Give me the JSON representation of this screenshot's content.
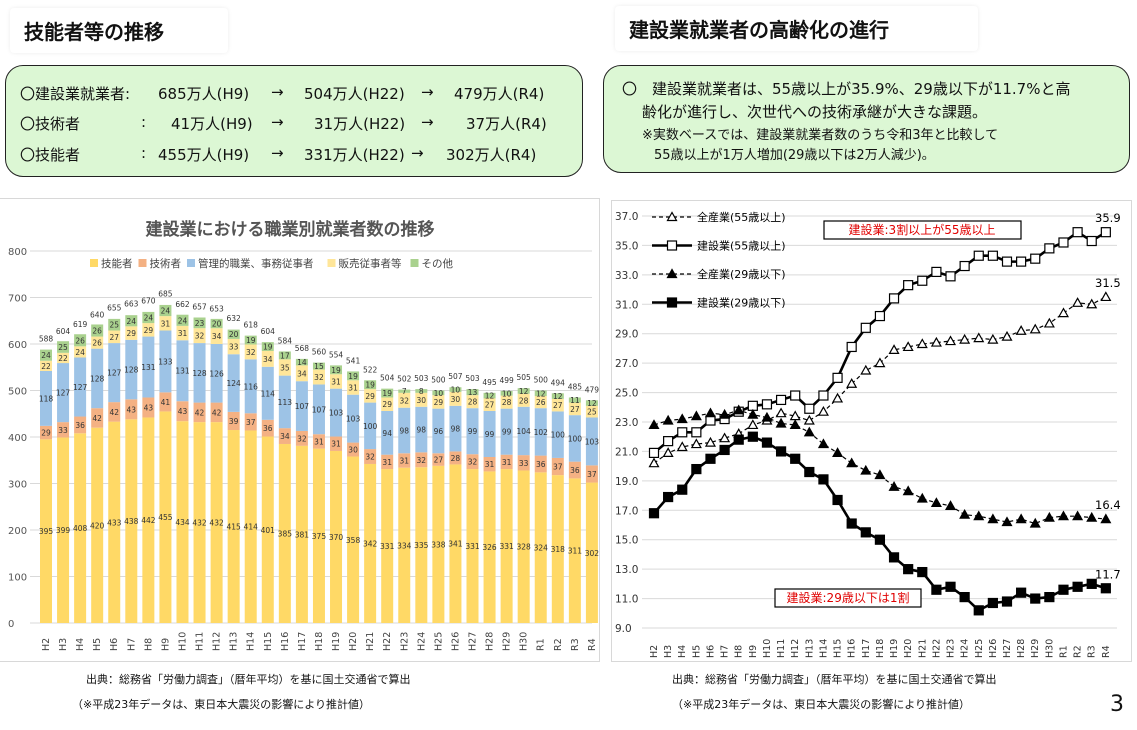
{
  "left": {
    "title": "技能者等の推移",
    "summary": [
      {
        "label": "〇建設業就業者",
        "sep": ":",
        "v1": "685万人(H9)",
        "v2": "504万人(H22)",
        "v3": "479万人(R4)"
      },
      {
        "label": "〇技術者",
        "sep": ":",
        "v1": "41万人(H9)",
        "v2": "31万人(H22)",
        "v3": "37万人(R4)"
      },
      {
        "label": "〇技能者",
        "sep": ":",
        "v1": "455万人(H9)",
        "v2": "331万人(H22)",
        "v3": "302万人(R4)"
      }
    ],
    "arrow": "→",
    "source": "出典：総務省「労働力調査」（暦年平均）を基に国土交通省で算出",
    "footnote": "（※平成23年データは、東日本大震災の影響により推計値）"
  },
  "right": {
    "title": "建設業就業者の高齢化の進行",
    "bullet": "〇",
    "line1": "建設業就業者は、55歳以上が35.9%、29歳以下が11.7%と高",
    "line2": "齢化が進行し、次世代への技術承継が大きな課題。",
    "line3": "※実数ベースでは、建設業就業者数のうち令和3年と比較して",
    "line4": "55歳以上が1万人増加(29歳以下は2万人減少)。",
    "source": "出典：総務省「労働力調査」（暦年平均）を基に国土交通省で算出",
    "footnote": "（※平成23年データは、東日本大震災の影響により推計値）"
  },
  "page_number": "3",
  "chart_data": [
    {
      "type": "bar",
      "stacked": true,
      "title": "建設業における職業別就業者数の推移",
      "legend_position": "top",
      "ylim": [
        0,
        800
      ],
      "yticks": [
        0,
        100,
        200,
        300,
        400,
        500,
        600,
        700,
        800
      ],
      "grid": true,
      "categories": [
        "H2",
        "H3",
        "H4",
        "H5",
        "H6",
        "H7",
        "H8",
        "H9",
        "H10",
        "H11",
        "H12",
        "H13",
        "H14",
        "H15",
        "H16",
        "H17",
        "H18",
        "H19",
        "H20",
        "H21",
        "H22",
        "H23",
        "H24",
        "H25",
        "H26",
        "H27",
        "H28",
        "H29",
        "H30",
        "R1",
        "R2",
        "R3",
        "R4"
      ],
      "series": [
        {
          "name": "技能者",
          "color": "#ffd966",
          "values": [
            395,
            399,
            408,
            420,
            433,
            438,
            442,
            455,
            434,
            432,
            432,
            415,
            414,
            401,
            385,
            381,
            375,
            370,
            358,
            342,
            331,
            334,
            335,
            338,
            341,
            331,
            326,
            331,
            328,
            324,
            318,
            311,
            302
          ]
        },
        {
          "name": "技術者",
          "color": "#f4b183",
          "values": [
            29,
            33,
            36,
            42,
            42,
            43,
            43,
            41,
            43,
            42,
            42,
            39,
            37,
            36,
            34,
            32,
            31,
            31,
            30,
            32,
            31,
            31,
            32,
            27,
            28,
            32,
            31,
            31,
            33,
            36,
            37,
            36,
            37
          ]
        },
        {
          "name": "管理的職業、事務従事者",
          "color": "#9dc3e6",
          "values": [
            118,
            127,
            127,
            128,
            127,
            128,
            131,
            133,
            131,
            128,
            126,
            124,
            116,
            114,
            113,
            107,
            107,
            103,
            103,
            100,
            94,
            98,
            98,
            96,
            98,
            99,
            99,
            99,
            104,
            102,
            100,
            100,
            103
          ]
        },
        {
          "name": "販売従事者等",
          "color": "#ffe699",
          "values": [
            22,
            22,
            24,
            26,
            27,
            29,
            29,
            31,
            31,
            32,
            34,
            33,
            32,
            34,
            35,
            34,
            32,
            31,
            31,
            29,
            29,
            32,
            30,
            29,
            30,
            28,
            27,
            28,
            28,
            26,
            27,
            27,
            25
          ]
        },
        {
          "name": "その他",
          "color": "#a9d18e",
          "values": [
            24,
            25,
            26,
            26,
            25,
            24,
            24,
            24,
            24,
            23,
            20,
            20,
            19,
            19,
            17,
            14,
            15,
            19,
            19,
            19,
            19,
            7,
            8,
            10,
            10,
            13,
            12,
            10,
            12,
            12,
            12,
            11,
            12
          ]
        }
      ],
      "totals": [
        588,
        604,
        619,
        640,
        655,
        663,
        670,
        685,
        662,
        657,
        653,
        632,
        618,
        604,
        584,
        568,
        560,
        554,
        541,
        522,
        504,
        502,
        503,
        500,
        507,
        503,
        495,
        499,
        505,
        500,
        494,
        485,
        479
      ]
    },
    {
      "type": "line",
      "ylim": [
        9.0,
        37.0
      ],
      "yticks": [
        "9.0",
        "11.0",
        "13.0",
        "15.0",
        "17.0",
        "19.0",
        "21.0",
        "23.0",
        "25.0",
        "27.0",
        "29.0",
        "31.0",
        "33.0",
        "35.0",
        "37.0"
      ],
      "grid": true,
      "legend_position": "top-left",
      "categories": [
        "H2",
        "H3",
        "H4",
        "H5",
        "H6",
        "H7",
        "H8",
        "H9",
        "H10",
        "H11",
        "H12",
        "H13",
        "H14",
        "H15",
        "H16",
        "H17",
        "H18",
        "H19",
        "H20",
        "H21",
        "H22",
        "H23",
        "H24",
        "H25",
        "H26",
        "H27",
        "H28",
        "H29",
        "H30",
        "R1",
        "R2",
        "R3",
        "R4"
      ],
      "series": [
        {
          "name": "全産業(55歳以上)",
          "style": "dashed",
          "marker": "open-triangle",
          "end_label": "31.5",
          "values": [
            20.2,
            20.9,
            21.3,
            21.5,
            21.6,
            21.9,
            22.2,
            22.8,
            23.1,
            23.6,
            23.4,
            23.1,
            23.7,
            24.6,
            25.6,
            26.5,
            27.0,
            27.9,
            28.1,
            28.3,
            28.4,
            28.5,
            28.6,
            28.7,
            28.6,
            28.8,
            29.2,
            29.3,
            29.7,
            30.4,
            31.1,
            31.0,
            31.5
          ]
        },
        {
          "name": "建設業(55歳以上)",
          "style": "solid",
          "marker": "open-square",
          "end_label": "35.9",
          "values": [
            20.9,
            21.7,
            22.3,
            22.3,
            23.1,
            23.2,
            23.7,
            24.1,
            24.2,
            24.5,
            24.8,
            23.9,
            24.8,
            26.0,
            28.1,
            29.4,
            30.2,
            31.4,
            32.3,
            32.6,
            33.2,
            32.9,
            33.6,
            34.3,
            34.3,
            33.9,
            33.9,
            34.1,
            34.8,
            35.2,
            35.9,
            35.3,
            35.9
          ]
        },
        {
          "name": "全産業(29歳以下)",
          "style": "dashed",
          "marker": "filled-triangle",
          "end_label": "16.4",
          "values": [
            22.8,
            23.1,
            23.2,
            23.4,
            23.6,
            23.5,
            23.8,
            23.5,
            23.3,
            22.9,
            22.8,
            22.3,
            21.5,
            20.9,
            20.2,
            19.7,
            19.4,
            18.6,
            18.3,
            17.8,
            17.5,
            17.3,
            16.7,
            16.6,
            16.4,
            16.2,
            16.4,
            16.1,
            16.5,
            16.6,
            16.6,
            16.5,
            16.4
          ]
        },
        {
          "name": "建設業(29歳以下)",
          "style": "solid",
          "marker": "filled-square",
          "end_label": "11.7",
          "values": [
            16.8,
            17.9,
            18.4,
            19.8,
            20.5,
            21.1,
            21.8,
            22.0,
            21.6,
            21.0,
            20.5,
            19.6,
            19.1,
            17.7,
            16.1,
            15.5,
            15.0,
            13.8,
            13.0,
            12.8,
            11.6,
            11.8,
            11.1,
            10.2,
            10.7,
            10.8,
            11.4,
            11.0,
            11.1,
            11.6,
            11.8,
            12.0,
            11.7
          ]
        }
      ],
      "annotations": [
        "建設業:3割以上が55歳以上",
        "建設業:29歳以下は1割"
      ],
      "annotation_color": "#e00000"
    }
  ]
}
